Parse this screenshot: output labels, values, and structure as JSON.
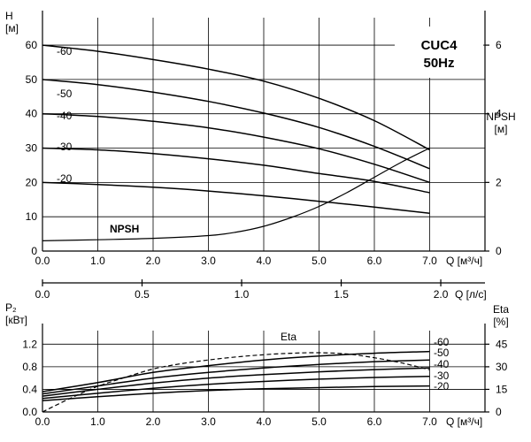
{
  "chart_data": [
    {
      "type": "line",
      "title_lines": [
        "CUC4",
        "50Hz"
      ],
      "xlabel": "Q [м³/ч]",
      "xticks": [
        "0.0",
        "1.0",
        "2.0",
        "3.0",
        "4.0",
        "5.0",
        "6.0",
        "7.0"
      ],
      "xlim": [
        0,
        8
      ],
      "ylabel_lines": [
        "H",
        "[м]"
      ],
      "yticks": [
        "0",
        "10",
        "20",
        "30",
        "40",
        "50",
        "60"
      ],
      "ylim": [
        0,
        68
      ],
      "y2label_lines": [
        "NPSH",
        "[м]"
      ],
      "y2ticks": [
        "0",
        "2",
        "4",
        "6"
      ],
      "y2lim": [
        0,
        6.8
      ],
      "grid": true,
      "series": [
        {
          "name": "-60",
          "x": [
            0,
            1,
            2,
            3,
            4,
            5,
            6,
            7
          ],
          "y": [
            60,
            58.2,
            55.8,
            53,
            49.5,
            44.5,
            38,
            29.5
          ]
        },
        {
          "name": "-50",
          "x": [
            0,
            1,
            2,
            3,
            4,
            5,
            6,
            7
          ],
          "y": [
            50,
            48.5,
            46.3,
            43.6,
            40.2,
            36,
            30.5,
            24
          ]
        },
        {
          "name": "-40",
          "x": [
            0,
            1,
            2,
            3,
            4,
            5,
            6,
            7
          ],
          "y": [
            40,
            39.2,
            37.8,
            35.9,
            33.2,
            29.8,
            25.3,
            20
          ]
        },
        {
          "name": "-30",
          "x": [
            0,
            1,
            2,
            3,
            4,
            5,
            6,
            7
          ],
          "y": [
            30,
            29.5,
            28.4,
            26.9,
            25,
            22.6,
            20.3,
            17
          ]
        },
        {
          "name": "-20",
          "x": [
            0,
            1,
            2,
            3,
            4,
            5,
            6,
            7
          ],
          "y": [
            20,
            19.4,
            18.6,
            17.5,
            16.1,
            14.5,
            12.8,
            11
          ]
        },
        {
          "name": "NPSH",
          "axis": "right",
          "x": [
            0,
            1,
            2,
            3,
            3.5,
            4,
            4.5,
            5,
            5.5,
            6,
            6.5,
            7
          ],
          "y": [
            0.3,
            0.33,
            0.37,
            0.45,
            0.55,
            0.72,
            0.98,
            1.3,
            1.7,
            2.15,
            2.6,
            3.0
          ]
        }
      ]
    },
    {
      "type": "scale",
      "xlabel": "Q [л/с]",
      "xticks": [
        "0.0",
        "0.5",
        "1.0",
        "1.5",
        "2.0"
      ],
      "xlim": [
        0,
        2.222
      ]
    },
    {
      "type": "line",
      "xlabel": "Q [м³/ч]",
      "xticks": [
        "0.0",
        "1.0",
        "2.0",
        "3.0",
        "4.0",
        "5.0",
        "6.0",
        "7.0"
      ],
      "xlim": [
        0,
        8
      ],
      "ylabel_lines": [
        "P₂",
        "[кВт]"
      ],
      "yticks": [
        "0.0",
        "0.4",
        "0.8",
        "1.2"
      ],
      "ylim": [
        0,
        1.44
      ],
      "y2label_lines": [
        "Eta",
        "[%]"
      ],
      "y2ticks": [
        "0",
        "15",
        "30",
        "45"
      ],
      "y2lim": [
        0,
        54
      ],
      "grid": true,
      "series": [
        {
          "name": "-60",
          "x": [
            0,
            1,
            2,
            3,
            4,
            5,
            6,
            7
          ],
          "y": [
            0.36,
            0.52,
            0.7,
            0.82,
            0.92,
            0.99,
            1.04,
            1.07
          ]
        },
        {
          "name": "-50",
          "x": [
            0,
            1,
            2,
            3,
            4,
            5,
            6,
            7
          ],
          "y": [
            0.32,
            0.46,
            0.6,
            0.7,
            0.78,
            0.84,
            0.89,
            0.92
          ]
        },
        {
          "name": "-40",
          "x": [
            0,
            1,
            2,
            3,
            4,
            5,
            6,
            7
          ],
          "y": [
            0.28,
            0.4,
            0.51,
            0.6,
            0.66,
            0.71,
            0.75,
            0.78
          ]
        },
        {
          "name": "-30",
          "x": [
            0,
            1,
            2,
            3,
            4,
            5,
            6,
            7
          ],
          "y": [
            0.24,
            0.33,
            0.42,
            0.49,
            0.54,
            0.58,
            0.61,
            0.63
          ]
        },
        {
          "name": "-20",
          "x": [
            0,
            1,
            2,
            3,
            4,
            5,
            6,
            7
          ],
          "y": [
            0.2,
            0.27,
            0.33,
            0.38,
            0.41,
            0.43,
            0.45,
            0.46
          ]
        },
        {
          "name": "Eta",
          "axis": "right",
          "dashed": true,
          "x": [
            0,
            0.5,
            1,
            1.5,
            2,
            2.5,
            3,
            3.5,
            4,
            4.5,
            5,
            5.5,
            6,
            6.5,
            7
          ],
          "y": [
            0,
            9,
            17,
            23,
            28.5,
            32,
            34.5,
            36.5,
            38,
            39,
            39.3,
            38.5,
            36,
            32.5,
            28
          ]
        }
      ]
    }
  ]
}
